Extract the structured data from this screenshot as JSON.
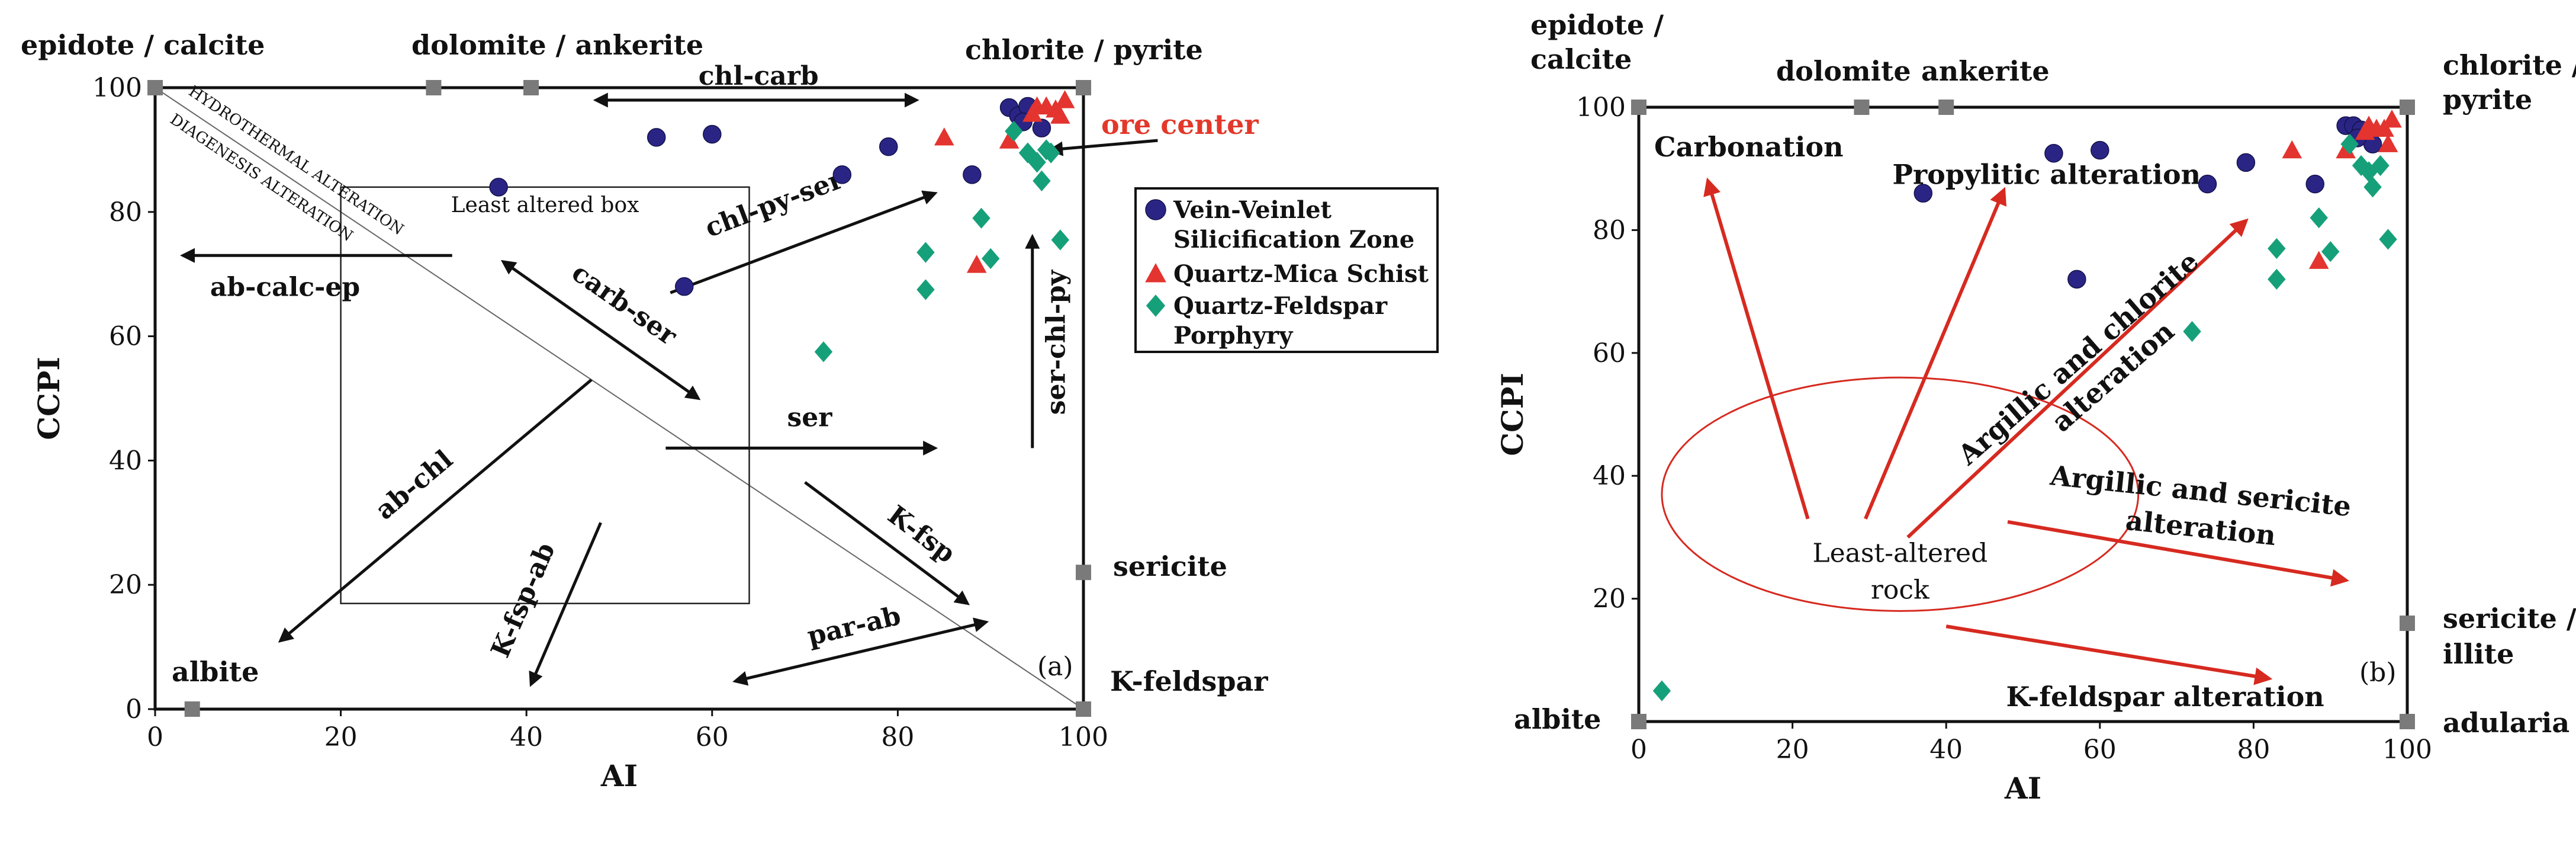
{
  "chart_data": [
    {
      "type": "scatter",
      "panel_label": "(a)",
      "xlabel": "AI",
      "ylabel": "CCPI",
      "xlim": [
        0,
        100
      ],
      "ylim": [
        0,
        100
      ],
      "xticks": [
        "0",
        "20",
        "40",
        "60",
        "80",
        "100"
      ],
      "yticks": [
        "0",
        "20",
        "40",
        "60",
        "80",
        "100"
      ],
      "legend": {
        "placement": "right-outside",
        "entries": [
          {
            "name": "Vein-Veinlet Silicification Zone",
            "lines": [
              "Vein-Veinlet",
              "Silicification Zone"
            ],
            "marker": "circle",
            "color": "#2a2585"
          },
          {
            "name": "Quartz-Mica Schist",
            "lines": [
              "Quartz-Mica Schist"
            ],
            "marker": "triangle",
            "color": "#e3342f"
          },
          {
            "name": "Quartz-Feldspar Porphyry",
            "lines": [
              "Quartz-Feldspar",
              "Porphyry"
            ],
            "marker": "diamond",
            "color": "#16a07a"
          }
        ]
      },
      "series": [
        {
          "name": "Vein-Veinlet Silicification Zone",
          "points": [
            [
              37,
              84
            ],
            [
              54,
              92
            ],
            [
              60,
              92.5
            ],
            [
              57,
              68
            ],
            [
              74,
              86
            ],
            [
              79,
              90.5
            ],
            [
              88,
              86
            ],
            [
              92,
              96.8
            ],
            [
              93,
              95.5
            ],
            [
              94,
              97
            ],
            [
              95.5,
              93.5
            ],
            [
              93.5,
              94.5
            ]
          ]
        },
        {
          "name": "Quartz-Mica Schist",
          "points": [
            [
              85,
              92
            ],
            [
              92,
              91.5
            ],
            [
              88.5,
              71.5
            ],
            [
              95,
              97
            ],
            [
              96,
              97
            ],
            [
              97,
              96.5
            ],
            [
              98,
              98
            ],
            [
              97.5,
              95.5
            ],
            [
              94.5,
              95.8
            ]
          ]
        },
        {
          "name": "Quartz-Feldspar Porphyry",
          "points": [
            [
              72,
              57.5
            ],
            [
              83,
              67.5
            ],
            [
              83,
              73.5
            ],
            [
              89,
              79
            ],
            [
              90,
              72.5
            ],
            [
              92.5,
              93
            ],
            [
              94,
              89.5
            ],
            [
              95,
              88
            ],
            [
              95.5,
              85
            ],
            [
              96.5,
              89.5
            ],
            [
              97.5,
              75.5
            ],
            [
              96,
              90
            ]
          ]
        }
      ],
      "corner_labels": [
        {
          "text": "epidote / calcite",
          "x": 0,
          "y": 100
        },
        {
          "text": "dolomite / ankerite",
          "x": 30,
          "y": 100
        },
        {
          "text": "chlorite / pyrite",
          "x": 100,
          "y": 100
        },
        {
          "text": "sericite",
          "x": 100,
          "y": 22
        },
        {
          "text": "K-feldspar",
          "x": 100,
          "y": 0
        },
        {
          "text": "albite",
          "x": 4,
          "y": 0
        }
      ],
      "square_markers": [
        [
          0,
          100
        ],
        [
          30,
          100
        ],
        [
          40.5,
          100
        ],
        [
          100,
          100
        ],
        [
          100,
          22
        ],
        [
          100,
          0
        ],
        [
          4,
          0
        ]
      ],
      "least_altered_box": {
        "label": "Least altered box",
        "x": [
          20,
          64
        ],
        "y": [
          17,
          84
        ]
      },
      "divider_labels": [
        "HYDROTHERMAL ALTERATION",
        "DIAGENESIS ALTERATION"
      ],
      "trend_arrows": [
        {
          "label": "chl-carb",
          "from": [
            47.5,
            98
          ],
          "to": [
            82,
            98
          ],
          "double": true
        },
        {
          "label": "chl-py-ser",
          "from": [
            55.5,
            67
          ],
          "to": [
            84,
            83
          ],
          "double": false
        },
        {
          "label": "ab-calc-ep",
          "from": [
            32,
            73
          ],
          "to": [
            3,
            73
          ],
          "double": false
        },
        {
          "label": "carb-ser",
          "from": [
            37.5,
            72
          ],
          "to": [
            58.5,
            50
          ],
          "double": true
        },
        {
          "label": "ser",
          "from": [
            55,
            42
          ],
          "to": [
            84,
            42
          ],
          "double": false
        },
        {
          "label": "ser-chl-py",
          "from": [
            94.5,
            42
          ],
          "to": [
            94.5,
            76
          ],
          "double": false
        },
        {
          "label": "ab-chl",
          "from": [
            47,
            53
          ],
          "to": [
            13.5,
            11
          ],
          "double": false
        },
        {
          "label": "K-fsp-ab",
          "from": [
            48,
            30
          ],
          "to": [
            40.5,
            4
          ],
          "double": false
        },
        {
          "label": "K-fsp",
          "from": [
            70,
            36.5
          ],
          "to": [
            87.5,
            17
          ],
          "double": false
        },
        {
          "label": "par-ab",
          "from": [
            62.5,
            4.5
          ],
          "to": [
            89.5,
            14
          ],
          "double": true
        }
      ],
      "annotations": [
        {
          "text": "ore center",
          "color": "#e2382a",
          "pointer_from": [
            108,
            91.5
          ],
          "pointer_to": [
            96.5,
            90
          ]
        }
      ]
    },
    {
      "type": "scatter",
      "panel_label": "(b)",
      "xlabel": "AI",
      "ylabel": "CCPI",
      "xlim": [
        0,
        100
      ],
      "ylim": [
        0,
        100
      ],
      "xticks": [
        "0",
        "20",
        "40",
        "60",
        "80",
        "100"
      ],
      "yticks": [
        "0",
        "20",
        "40",
        "60",
        "80",
        "100"
      ],
      "series": [
        {
          "name": "Vein-Veinlet Silicification Zone",
          "points": [
            [
              37,
              86
            ],
            [
              54,
              92.5
            ],
            [
              60,
              93
            ],
            [
              57,
              72
            ],
            [
              74,
              87.5
            ],
            [
              79,
              91
            ],
            [
              88,
              87.5
            ],
            [
              92,
              97
            ],
            [
              93,
              97
            ],
            [
              94,
              96.3
            ],
            [
              95.5,
              94
            ],
            [
              93.5,
              95
            ]
          ]
        },
        {
          "name": "Quartz-Mica Schist",
          "points": [
            [
              85,
              93
            ],
            [
              92,
              93
            ],
            [
              88.5,
              75
            ],
            [
              95,
              97
            ],
            [
              96,
              96.5
            ],
            [
              97,
              96.5
            ],
            [
              98,
              98
            ],
            [
              97.5,
              94
            ],
            [
              94.5,
              96
            ]
          ]
        },
        {
          "name": "Quartz-Feldspar Porphyry",
          "points": [
            [
              3,
              5
            ],
            [
              72,
              63.5
            ],
            [
              83,
              72
            ],
            [
              83,
              77
            ],
            [
              88.5,
              82
            ],
            [
              90,
              76.5
            ],
            [
              92.5,
              94
            ],
            [
              94,
              90.5
            ],
            [
              95,
              89.5
            ],
            [
              95.5,
              87
            ],
            [
              96.5,
              90.5
            ],
            [
              97.5,
              78.5
            ]
          ]
        }
      ],
      "corner_labels": [
        {
          "text": "epidote / calcite",
          "lines": [
            "epidote /",
            "calcite"
          ],
          "x": 0,
          "y": 100
        },
        {
          "text": "dolomite",
          "x": 29,
          "y": 100
        },
        {
          "text": "ankerite",
          "x": 40,
          "y": 100
        },
        {
          "text": "chlorite / pyrite",
          "lines": [
            "chlorite /",
            "pyrite"
          ],
          "x": 100,
          "y": 100
        },
        {
          "text": "sericite / illite",
          "lines": [
            "sericite /",
            "illite"
          ],
          "x": 100,
          "y": 16
        },
        {
          "text": "adularia",
          "x": 100,
          "y": 0
        },
        {
          "text": "albite",
          "x": 0,
          "y": 0
        }
      ],
      "square_markers": [
        [
          0,
          100
        ],
        [
          29,
          100
        ],
        [
          40,
          100
        ],
        [
          100,
          100
        ],
        [
          100,
          16
        ],
        [
          100,
          0
        ],
        [
          0,
          0
        ]
      ],
      "least_altered_circle": {
        "label": "Least-altered rock",
        "lines": [
          "Least-altered",
          "rock"
        ],
        "center": [
          34,
          37
        ],
        "radius_x": 31,
        "radius_y": 19
      },
      "trend_arrows": [
        {
          "label": "Carbonation",
          "from": [
            22,
            33
          ],
          "to": [
            9,
            88
          ]
        },
        {
          "label": "Propylitic alteration",
          "from": [
            29.5,
            33
          ],
          "to": [
            47.5,
            86.5
          ]
        },
        {
          "label": "Argillic and chlorite alteration",
          "from": [
            35,
            30
          ],
          "to": [
            79,
            81.5
          ]
        },
        {
          "label": "Argillic and sericite alteration",
          "from": [
            48,
            32.5
          ],
          "to": [
            92,
            23
          ]
        },
        {
          "label": "K-feldspar alteration",
          "from": [
            40,
            15.5
          ],
          "to": [
            82,
            7
          ]
        }
      ],
      "region_labels": [
        {
          "text": "Carbonation"
        },
        {
          "text": "Propylitic alteration"
        },
        {
          "text": "Argillic and chlorite alteration",
          "lines": [
            "Argillic and chlorite",
            "alteration"
          ]
        },
        {
          "text": "Argillic and sericite alteration",
          "lines": [
            "Argillic and sericite",
            "alteration"
          ]
        },
        {
          "text": "K-feldspar alteration"
        }
      ]
    }
  ]
}
